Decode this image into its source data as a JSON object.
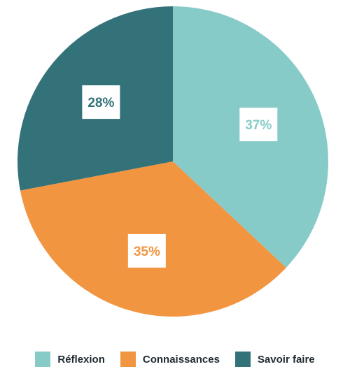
{
  "chart_data": {
    "type": "pie",
    "categories": [
      "Réflexion",
      "Connaissances",
      "Savoir faire"
    ],
    "values": [
      37,
      35,
      28
    ],
    "value_labels": [
      "37%",
      "35%",
      "28%"
    ],
    "colors": [
      "#87cbc9",
      "#f29540",
      "#34727a"
    ],
    "label_text_colors": [
      "#87cbc9",
      "#f29540",
      "#34727a"
    ],
    "start_angle_deg": 0,
    "direction": "clockwise",
    "legend_position": "bottom"
  }
}
